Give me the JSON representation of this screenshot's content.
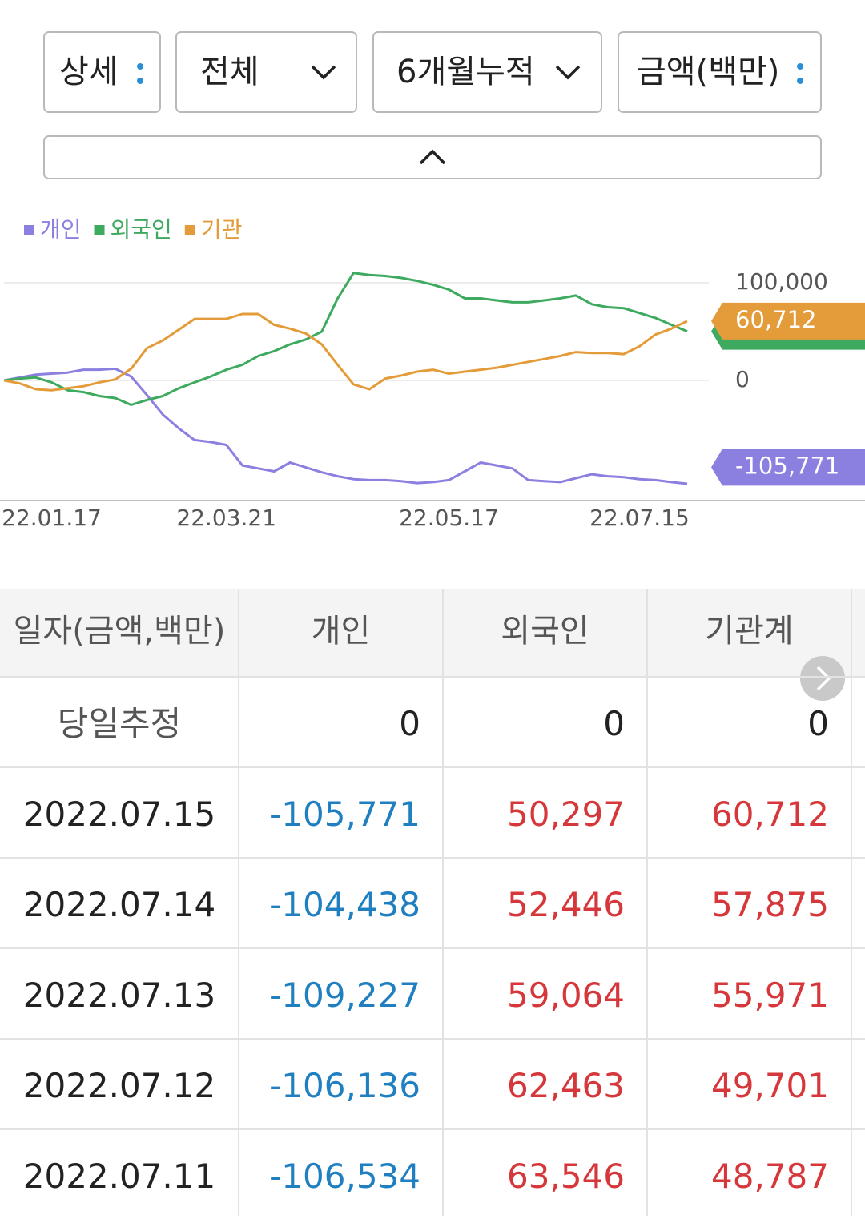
{
  "controls": {
    "buttons": [
      "상세",
      "전체",
      "6개월누적",
      "금액(백만)"
    ]
  },
  "chart_data": {
    "type": "line",
    "categories": [
      null,
      null,
      null,
      "22.01.17",
      null,
      null,
      null,
      null,
      null,
      null,
      null,
      null,
      null,
      null,
      "22.03.21",
      null,
      null,
      null,
      null,
      null,
      null,
      null,
      null,
      null,
      null,
      null,
      null,
      null,
      "22.05.17",
      null,
      null,
      null,
      null,
      null,
      null,
      null,
      null,
      null,
      null,
      null,
      "22.07.15",
      null,
      null,
      null
    ],
    "series": [
      {
        "name": "개인",
        "color": "#8b7fe0",
        "values": [
          0,
          3000,
          6000,
          7000,
          8000,
          11000,
          11000,
          12000,
          4000,
          -15000,
          -35000,
          -49000,
          -61000,
          -63000,
          -66000,
          -87000,
          -90000,
          -93000,
          -84000,
          -89000,
          -94000,
          -98000,
          -101000,
          -102000,
          -102000,
          -103000,
          -105000,
          -104000,
          -102000,
          -93000,
          -84000,
          -87000,
          -90000,
          -102000,
          -103000,
          -104000,
          -100000,
          -96000,
          -98000,
          -99000,
          -101000,
          -102000,
          -104000,
          -105771
        ],
        "value_labels": [
          null,
          null,
          null,
          null,
          null,
          null,
          null,
          null,
          null,
          null,
          null,
          null,
          null,
          null,
          null,
          null,
          null,
          null,
          null,
          null,
          null,
          null,
          null,
          null,
          null,
          null,
          null,
          null,
          null,
          null,
          null,
          null,
          null,
          null,
          null,
          null,
          null,
          null,
          null,
          null,
          null,
          null,
          null,
          "-105,771"
        ]
      },
      {
        "name": "외국인",
        "color": "#3daa5f",
        "values": [
          0,
          2000,
          3000,
          -2000,
          -10000,
          -12000,
          -16000,
          -18000,
          -25000,
          -20000,
          -16000,
          -8000,
          -2000,
          4000,
          11000,
          16000,
          25000,
          30000,
          37000,
          42000,
          50000,
          84000,
          110000,
          108000,
          107000,
          105000,
          102000,
          98000,
          93000,
          84000,
          84000,
          82000,
          80000,
          80000,
          82000,
          84000,
          87000,
          78000,
          75000,
          74000,
          69000,
          64000,
          57000,
          50297
        ]
      },
      {
        "name": "기관",
        "color": "#e49c3a",
        "values": [
          0,
          -3000,
          -9000,
          -10000,
          -8000,
          -6000,
          -2000,
          1000,
          12000,
          33000,
          41000,
          52000,
          63000,
          63000,
          63000,
          68000,
          68000,
          57000,
          53000,
          48000,
          37000,
          16000,
          -4000,
          -9000,
          2000,
          5000,
          9000,
          11000,
          7000,
          9000,
          11000,
          13000,
          16000,
          19000,
          22000,
          25000,
          29000,
          28000,
          28000,
          27000,
          35000,
          47000,
          53000,
          60712
        ],
        "value_labels": [
          null,
          null,
          null,
          null,
          null,
          null,
          null,
          null,
          null,
          null,
          null,
          null,
          null,
          null,
          null,
          null,
          null,
          null,
          null,
          null,
          null,
          null,
          null,
          null,
          null,
          null,
          null,
          null,
          null,
          null,
          null,
          null,
          null,
          null,
          null,
          null,
          null,
          null,
          null,
          null,
          null,
          null,
          null,
          "60,712"
        ]
      }
    ],
    "ylim": [
      -120000,
      120000
    ],
    "yticks": [
      {
        "value": 100000,
        "label": "100,000"
      },
      0
    ],
    "grid": true,
    "legend": "top-left"
  },
  "table": {
    "header": [
      "일자(금액,백만)",
      "개인",
      "외국인",
      "기관계"
    ],
    "rows": [
      [
        "당일추정",
        "0",
        "0",
        "0"
      ],
      [
        "2022.07.15",
        "-105,771",
        "50,297",
        "60,712"
      ],
      [
        "2022.07.14",
        "-104,438",
        "52,446",
        "57,875"
      ],
      [
        "2022.07.13",
        "-109,227",
        "59,064",
        "55,971"
      ],
      [
        "2022.07.12",
        "-106,136",
        "62,463",
        "49,701"
      ],
      [
        "2022.07.11",
        "-106,534",
        "63,546",
        "48,787"
      ]
    ]
  }
}
